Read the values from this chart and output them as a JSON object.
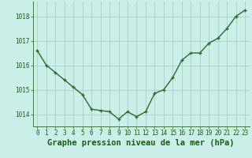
{
  "x": [
    0,
    1,
    2,
    3,
    4,
    5,
    6,
    7,
    8,
    9,
    10,
    11,
    12,
    13,
    14,
    15,
    16,
    17,
    18,
    19,
    20,
    21,
    22,
    23
  ],
  "y": [
    1016.6,
    1016.0,
    1015.7,
    1015.4,
    1015.1,
    1014.8,
    1014.2,
    1014.15,
    1014.1,
    1013.8,
    1014.1,
    1013.9,
    1014.1,
    1014.85,
    1015.0,
    1015.5,
    1016.2,
    1016.5,
    1016.5,
    1016.9,
    1017.1,
    1017.5,
    1018.0,
    1018.25
  ],
  "line_color": "#2d6a2d",
  "marker_color": "#2d6a2d",
  "bg_color": "#cceee8",
  "grid_color": "#aacccc",
  "xlabel": "Graphe pression niveau de la mer (hPa)",
  "xlabel_fontsize": 7.5,
  "ylim": [
    1013.5,
    1018.6
  ],
  "yticks": [
    1014,
    1015,
    1016,
    1017,
    1018
  ],
  "xticks": [
    0,
    1,
    2,
    3,
    4,
    5,
    6,
    7,
    8,
    9,
    10,
    11,
    12,
    13,
    14,
    15,
    16,
    17,
    18,
    19,
    20,
    21,
    22,
    23
  ],
  "tick_fontsize": 5.5,
  "marker_size": 3.0,
  "line_width": 1.0,
  "text_color": "#1a5c1a"
}
